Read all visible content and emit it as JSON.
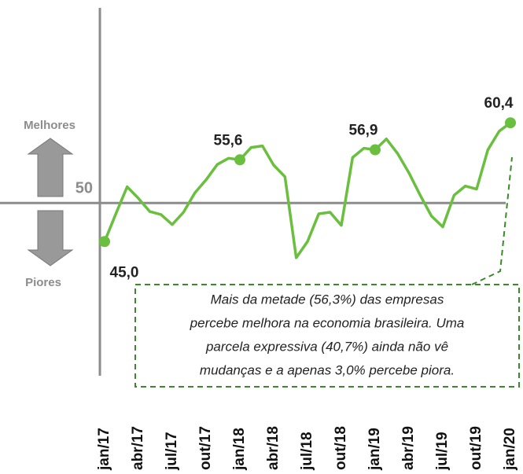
{
  "chart_data": {
    "type": "line",
    "categories": [
      "jan/17",
      null,
      null,
      "abr/17",
      null,
      null,
      "jul/17",
      null,
      null,
      "out/17",
      null,
      null,
      "jan/18",
      null,
      null,
      "abr/18",
      null,
      null,
      "jul/18",
      null,
      null,
      "out/18",
      null,
      null,
      "jan/19",
      null,
      null,
      "abr/19",
      null,
      null,
      "jul/19",
      null,
      null,
      "out/19",
      null,
      null,
      "jan/20"
    ],
    "values": [
      45.0,
      48.6,
      52.1,
      50.6,
      48.9,
      48.5,
      47.2,
      48.8,
      51.3,
      53.0,
      55.0,
      55.8,
      55.6,
      57.2,
      57.4,
      54.9,
      53.4,
      42.9,
      45.0,
      48.6,
      48.8,
      47.1,
      55.9,
      57.1,
      56.9,
      58.3,
      56.4,
      53.9,
      51.0,
      48.3,
      46.9,
      51.0,
      52.2,
      51.8,
      56.9,
      59.3,
      60.4
    ],
    "value_labels": [
      "45,0",
      null,
      null,
      null,
      null,
      null,
      null,
      null,
      null,
      null,
      null,
      null,
      "55,6",
      null,
      null,
      null,
      null,
      null,
      null,
      null,
      null,
      null,
      null,
      null,
      "56,9",
      null,
      null,
      null,
      null,
      null,
      null,
      null,
      null,
      null,
      null,
      null,
      "60,4"
    ],
    "color": "#6abf3f",
    "ylim": [
      27.6,
      75.3
    ],
    "yticks": [
      50
    ],
    "upper_label": "Melhores",
    "lower_label": "Piores",
    "annotation": [
      "Mais da metade (56,3%)  das empresas",
      "percebe melhora na economia brasileira. Uma",
      "parcela expressiva (40,7%) ainda não vê",
      "mudanças e a apenas 3,0% percebe piora."
    ]
  }
}
